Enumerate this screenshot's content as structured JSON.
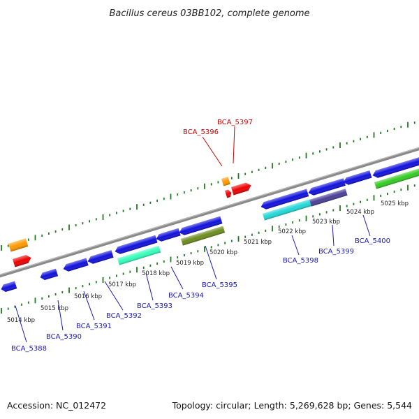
{
  "header": {
    "title": "Bacillus cereus 03BB102, complete genome"
  },
  "footer": {
    "accession": "Accession: NC_012472",
    "topology": "Topology: circular; Length: 5,269,628 bp; Genes: 5,544"
  },
  "colors": {
    "backbone": "#8a8a8a",
    "tick": "#1f7a1f",
    "forward_label": "#cc0000",
    "reverse_label": "#1a1ab4"
  },
  "scale_labels": [
    "5014 kbp",
    "5015 kbp",
    "5016 kbp",
    "5017 kbp",
    "5018 kbp",
    "5019 kbp",
    "5020 kbp",
    "5021 kbp",
    "5022 kbp",
    "5023 kbp",
    "5024 kbp",
    "5025 kbp"
  ],
  "gene_labels": {
    "forward": [
      "BCA_5396",
      "BCA_5397"
    ],
    "reverse": [
      "BCA_5388",
      "BCA_5390",
      "BCA_5391",
      "BCA_5392",
      "BCA_5393",
      "BCA_5394",
      "BCA_5395",
      "BCA_5398",
      "BCA_5399",
      "BCA_5400"
    ]
  },
  "features": {
    "forward": [
      {
        "color": "#ff9900"
      },
      {
        "color": "#ee0000"
      },
      {
        "color": "#ff9900"
      },
      {
        "color": "#ee0000"
      }
    ],
    "reverse": [
      {
        "color": "#1010dd"
      },
      {
        "color": "#1010dd"
      },
      {
        "color": "#1010dd"
      },
      {
        "color": "#1010dd"
      },
      {
        "color": "#1010dd"
      },
      {
        "color": "#1010dd"
      },
      {
        "color": "#1010dd"
      },
      {
        "color": "#1010dd"
      },
      {
        "color": "#1010dd"
      },
      {
        "color": "#1010dd"
      },
      {
        "color": "#1010dd"
      },
      {
        "color": "#33ffbb"
      },
      {
        "color": "#6b8c1e"
      },
      {
        "color": "#22d8d8"
      },
      {
        "color": "#4a3f96"
      },
      {
        "color": "#33cc22"
      }
    ]
  }
}
